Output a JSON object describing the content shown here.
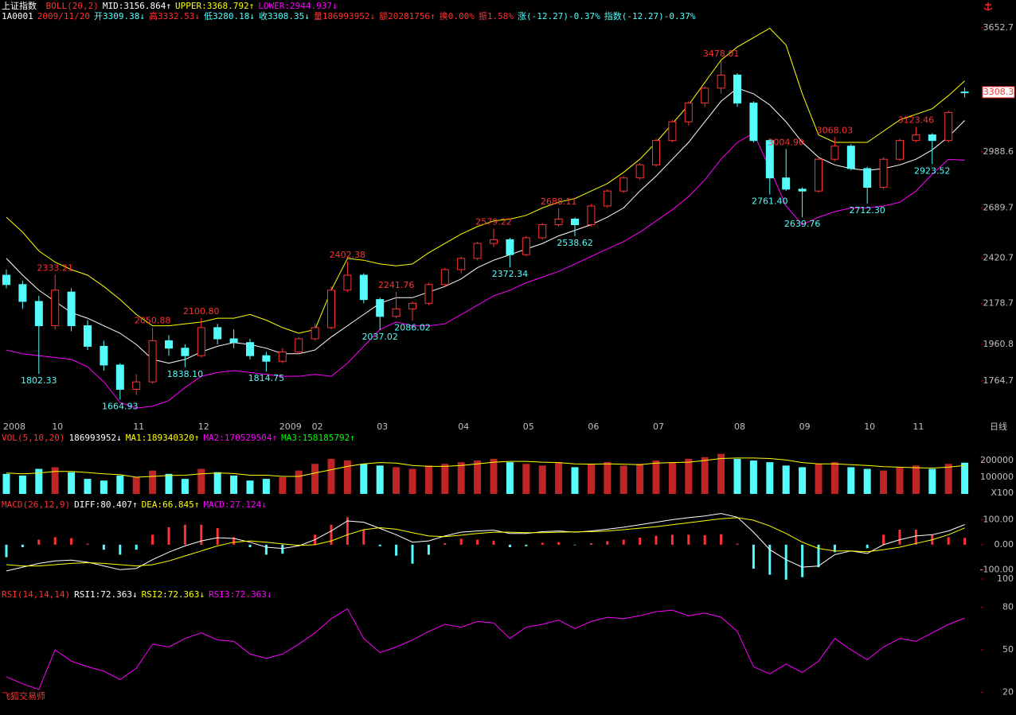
{
  "header": {
    "name": "上证指数",
    "quote": [
      {
        "text": "1A0001",
        "color": "#ffffff"
      },
      {
        "text": "2009/11/20",
        "color": "#ff3232"
      },
      {
        "text": "开3309.38↓",
        "color": "#54fcfc"
      },
      {
        "text": "高3332.53↓",
        "color": "#ff3232"
      },
      {
        "text": "低3280.18↓",
        "color": "#54fcfc"
      },
      {
        "text": "收3308.35↓",
        "color": "#54fcfc"
      },
      {
        "text": "量186993952↓",
        "color": "#ff3232"
      },
      {
        "text": "额20281756↑",
        "color": "#ff3232"
      },
      {
        "text": "换0.00%",
        "color": "#ff3232"
      },
      {
        "text": "振1.58%",
        "color": "#ff3232"
      },
      {
        "text": "涨(-12.27)-0.37%",
        "color": "#54fcfc"
      },
      {
        "text": "指数(-12.27)-0.37%",
        "color": "#54fcfc"
      }
    ]
  },
  "chart_data": [
    {
      "type": "candlestick",
      "legend": [
        {
          "text": "BOLL(20,2)",
          "color": "#ff3232"
        },
        {
          "text": "MID:3156.864↑",
          "color": "#ffffff"
        },
        {
          "text": "UPPER:3368.792↑",
          "color": "#ffff00"
        },
        {
          "text": "LOWER:2944.937↓",
          "color": "#ff00ff"
        }
      ],
      "categories": [
        "2008",
        null,
        null,
        "10",
        null,
        null,
        null,
        null,
        "11",
        null,
        null,
        null,
        "12",
        null,
        null,
        null,
        null,
        "2009",
        null,
        "02",
        null,
        null,
        null,
        "03",
        null,
        null,
        null,
        null,
        "04",
        null,
        null,
        null,
        "05",
        null,
        null,
        null,
        "06",
        null,
        null,
        null,
        "07",
        null,
        null,
        null,
        null,
        "08",
        null,
        null,
        null,
        "09",
        null,
        null,
        null,
        "10",
        null,
        null,
        "11",
        null,
        null,
        null
      ],
      "open": [
        2330,
        2280,
        2190,
        2060,
        2240,
        2060,
        1950,
        1850,
        1720,
        1760,
        1980,
        1940,
        1900,
        2050,
        1990,
        1970,
        1900,
        1870,
        1920,
        1990,
        2050,
        2250,
        2330,
        2200,
        2110,
        2150,
        2180,
        2280,
        2360,
        2420,
        2500,
        2520,
        2440,
        2530,
        2600,
        2630,
        2600,
        2700,
        2780,
        2850,
        2920,
        3050,
        3150,
        3250,
        3330,
        3400,
        3250,
        3050,
        2850,
        2790,
        2780,
        2950,
        3020,
        2900,
        2800,
        2950,
        3050,
        3080,
        3050,
        3309.38
      ],
      "high": [
        2360,
        2300,
        2220,
        2333.21,
        2260,
        2090,
        1980,
        1860,
        1800,
        2050.88,
        2010,
        1960,
        2100.8,
        2070,
        2040,
        1990,
        1920,
        1940,
        2000,
        2070,
        2270,
        2402.38,
        2340,
        2210,
        2241.76,
        2190,
        2290,
        2370,
        2430,
        2510,
        2579.22,
        2530,
        2540,
        2610,
        2688.11,
        2640,
        2710,
        2790,
        2860,
        2930,
        3060,
        3160,
        3260,
        3340,
        3478.01,
        3410,
        3260,
        3060,
        3004.9,
        2800,
        2960,
        3068.03,
        3030,
        2910,
        2960,
        3060,
        3123.46,
        3090,
        3210,
        3332.53
      ],
      "low": [
        2260,
        2150,
        1802.33,
        2040,
        2030,
        1930,
        1820,
        1664.93,
        1690,
        1750,
        1900,
        1838.1,
        1890,
        1960,
        1940,
        1880,
        1814.75,
        1860,
        1910,
        1980,
        2040,
        2240,
        2180,
        2037.02,
        2100,
        2086.02,
        2170,
        2270,
        2340,
        2410,
        2480,
        2372.34,
        2430,
        2520,
        2590,
        2538.62,
        2590,
        2690,
        2770,
        2840,
        2910,
        3040,
        3130,
        3230,
        3300,
        3230,
        3040,
        2761.4,
        2780,
        2639.76,
        2770,
        2940,
        2890,
        2712.3,
        2790,
        2940,
        3040,
        2923.52,
        3040,
        3280.18
      ],
      "close": [
        2280,
        2190,
        2060,
        2250,
        2060,
        1950,
        1850,
        1720,
        1760,
        1980,
        1940,
        1900,
        2050,
        1990,
        1970,
        1900,
        1870,
        1920,
        1990,
        2050,
        2250,
        2330,
        2200,
        2110,
        2150,
        2180,
        2280,
        2360,
        2420,
        2500,
        2520,
        2440,
        2530,
        2600,
        2630,
        2600,
        2700,
        2780,
        2850,
        2920,
        3050,
        3150,
        3250,
        3330,
        3400,
        3250,
        3050,
        2850,
        2790,
        2780,
        2950,
        3020,
        2900,
        2800,
        2950,
        3050,
        3080,
        3050,
        3200,
        3308.35
      ],
      "up_color": "#ff3232",
      "down_color": "#54fcfc",
      "overlays": [
        {
          "color": "#ffff00",
          "values": [
            2640,
            2560,
            2460,
            2400,
            2360,
            2330,
            2270,
            2200,
            2120,
            2060,
            2060,
            2070,
            2080,
            2100,
            2100,
            2120,
            2090,
            2050,
            2020,
            2040,
            2250,
            2420,
            2410,
            2390,
            2380,
            2390,
            2450,
            2500,
            2550,
            2590,
            2620,
            2630,
            2650,
            2690,
            2720,
            2740,
            2780,
            2820,
            2880,
            2950,
            3040,
            3140,
            3240,
            3360,
            3480,
            3550,
            3600,
            3650,
            3560,
            3300,
            3080,
            3040,
            3040,
            3040,
            3100,
            3160,
            3190,
            3220,
            3290,
            3368.792
          ]
        },
        {
          "color": "#ffffff",
          "values": [
            2420,
            2330,
            2250,
            2190,
            2130,
            2100,
            2060,
            2020,
            1960,
            1880,
            1860,
            1880,
            1920,
            1950,
            1970,
            1960,
            1940,
            1910,
            1910,
            1930,
            2000,
            2060,
            2120,
            2180,
            2210,
            2210,
            2240,
            2270,
            2310,
            2370,
            2410,
            2440,
            2470,
            2500,
            2540,
            2570,
            2600,
            2640,
            2690,
            2780,
            2860,
            2950,
            3040,
            3150,
            3260,
            3330,
            3300,
            3240,
            3150,
            3040,
            2960,
            2920,
            2900,
            2890,
            2900,
            2920,
            2950,
            3000,
            3070,
            3156.864
          ]
        },
        {
          "color": "#ff00ff",
          "values": [
            1930,
            1910,
            1900,
            1890,
            1880,
            1840,
            1760,
            1650,
            1620,
            1630,
            1660,
            1730,
            1790,
            1810,
            1820,
            1810,
            1800,
            1790,
            1790,
            1800,
            1790,
            1860,
            1950,
            2040,
            2080,
            2060,
            2060,
            2070,
            2120,
            2170,
            2220,
            2250,
            2290,
            2320,
            2350,
            2390,
            2430,
            2470,
            2510,
            2560,
            2620,
            2680,
            2750,
            2840,
            2950,
            3040,
            3090,
            2900,
            2700,
            2600,
            2640,
            2670,
            2690,
            2690,
            2700,
            2720,
            2780,
            2870,
            2950,
            2944.937
          ]
        }
      ],
      "annotations": [
        {
          "value": 2333.21,
          "label": "2333.21"
        },
        {
          "value": 1802.33,
          "label": "1802.33"
        },
        {
          "value": 1664.93,
          "label": "1664.93"
        },
        {
          "value": 2050.88,
          "label": "2050.88"
        },
        {
          "value": 2100.8,
          "label": "2100.80"
        },
        {
          "value": 1838.1,
          "label": "1838.10"
        },
        {
          "value": 1814.75,
          "label": "1814.75"
        },
        {
          "value": 2402.38,
          "label": "2402.38"
        },
        {
          "value": 2241.76,
          "label": "2241.76"
        },
        {
          "value": 2037.02,
          "label": "2037.02"
        },
        {
          "value": 2086.02,
          "label": "2086.02"
        },
        {
          "value": 2579.22,
          "label": "2579.22"
        },
        {
          "value": 2372.34,
          "label": "2372.34"
        },
        {
          "value": 2688.11,
          "label": "2688.11"
        },
        {
          "value": 2538.62,
          "label": "2538.62"
        },
        {
          "value": 3478.01,
          "label": "3478.01"
        },
        {
          "value": 3004.9,
          "label": "3004.90"
        },
        {
          "value": 2761.4,
          "label": "2761.40"
        },
        {
          "value": 2639.76,
          "label": "2639.76"
        },
        {
          "value": 3068.03,
          "label": "3068.03"
        },
        {
          "value": 2712.3,
          "label": "2712.30"
        },
        {
          "value": 3123.46,
          "label": "3123.46"
        },
        {
          "value": 2923.52,
          "label": "2923.52"
        }
      ],
      "last_price": 3308.3,
      "period_label": "日线",
      "ylim": [
        1582,
        3682
      ],
      "yticks": [
        3652.7,
        2988.6,
        2689.7,
        2420.7,
        2178.7,
        1960.8,
        1764.7
      ]
    },
    {
      "type": "bar",
      "legend": [
        {
          "text": "VOL(5,10,20)",
          "color": "#ff3232"
        },
        {
          "text": "186993952↓",
          "color": "#ffffff"
        },
        {
          "text": "MA1:189340320↑",
          "color": "#ffff00"
        },
        {
          "text": "MA2:170529504↑",
          "color": "#ff00ff"
        },
        {
          "text": "MA3:158185792↑",
          "color": "#00ff00"
        }
      ],
      "values": [
        120000,
        110000,
        150000,
        160000,
        130000,
        90000,
        80000,
        110000,
        100000,
        140000,
        120000,
        90000,
        150000,
        130000,
        110000,
        80000,
        90000,
        100000,
        140000,
        180000,
        210000,
        200000,
        180000,
        170000,
        160000,
        150000,
        170000,
        180000,
        190000,
        200000,
        210000,
        190000,
        180000,
        170000,
        190000,
        160000,
        180000,
        190000,
        170000,
        180000,
        200000,
        190000,
        210000,
        220000,
        240000,
        210000,
        200000,
        190000,
        170000,
        160000,
        180000,
        190000,
        160000,
        150000,
        140000,
        160000,
        170000,
        150000,
        180000,
        187000
      ],
      "ma": {
        "color": "#ffff00",
        "values": [
          125000,
          120000,
          125000,
          135000,
          135000,
          128000,
          120000,
          115000,
          100000,
          105000,
          110000,
          112000,
          120000,
          126000,
          122000,
          112000,
          112000,
          105000,
          105000,
          125000,
          145000,
          165000,
          180000,
          188000,
          185000,
          170000,
          165000,
          165000,
          170000,
          180000,
          190000,
          195000,
          195000,
          190000,
          188000,
          180000,
          178000,
          180000,
          178000,
          175000,
          185000,
          188000,
          190000,
          200000,
          212000,
          215000,
          215000,
          212000,
          203000,
          188000,
          180000,
          180000,
          175000,
          170000,
          163000,
          160000,
          157000,
          155000,
          160000,
          170000
        ]
      },
      "unit_label": "X100",
      "ylim": [
        0,
        305000
      ],
      "yticks": [
        200000,
        100000
      ]
    },
    {
      "type": "macd",
      "legend": [
        {
          "text": "MACD(26,12,9)",
          "color": "#ff3232"
        },
        {
          "text": "DIFF:80.407↑",
          "color": "#ffffff"
        },
        {
          "text": "DEA:66.845↑",
          "color": "#ffff00"
        },
        {
          "text": "MACD:27.124↓",
          "color": "#ff00ff"
        }
      ],
      "series": [
        {
          "color": "#ffffff",
          "values": [
            -105,
            -90,
            -75,
            -65,
            -62,
            -70,
            -85,
            -100,
            -95,
            -60,
            -30,
            -5,
            15,
            28,
            25,
            10,
            -10,
            -15,
            -5,
            20,
            55,
            95,
            90,
            65,
            40,
            10,
            15,
            35,
            50,
            55,
            58,
            45,
            45,
            52,
            55,
            50,
            55,
            62,
            70,
            80,
            90,
            100,
            108,
            115,
            125,
            110,
            50,
            -20,
            -60,
            -90,
            -85,
            -40,
            -25,
            -35,
            0,
            20,
            35,
            40,
            55,
            80.407
          ]
        },
        {
          "color": "#ffff00",
          "values": [
            -80,
            -85,
            -85,
            -80,
            -75,
            -72,
            -75,
            -80,
            -85,
            -80,
            -65,
            -45,
            -25,
            -5,
            10,
            15,
            10,
            3,
            -3,
            0,
            15,
            40,
            60,
            68,
            62,
            48,
            35,
            32,
            38,
            45,
            50,
            50,
            48,
            48,
            50,
            51,
            52,
            55,
            60,
            66,
            72,
            80,
            88,
            96,
            104,
            108,
            98,
            75,
            45,
            10,
            -15,
            -25,
            -25,
            -28,
            -20,
            -10,
            5,
            20,
            40,
            66.845
          ]
        }
      ],
      "histogram": [
        -50,
        -10,
        20,
        30,
        26,
        4,
        -20,
        -40,
        -20,
        40,
        70,
        80,
        80,
        66,
        30,
        -10,
        -40,
        -36,
        -4,
        40,
        80,
        110,
        60,
        -6,
        -44,
        -76,
        -40,
        6,
        24,
        20,
        16,
        -10,
        -6,
        8,
        10,
        -2,
        6,
        14,
        20,
        28,
        36,
        40,
        40,
        38,
        42,
        4,
        -96,
        -120,
        -140,
        -130,
        -90,
        -30,
        0,
        -14,
        40,
        60,
        60,
        40,
        30,
        27.124
      ],
      "up_color": "#ff3232",
      "down_color": "#54fcfc",
      "ylim": [
        -150,
        165
      ],
      "yticks": [
        {
          "value": 100,
          "label": "100.00"
        },
        {
          "value": 0,
          "label": "0.00"
        },
        {
          "value": -100,
          "label": "-100.00"
        }
      ]
    },
    {
      "type": "line",
      "legend": [
        {
          "text": "RSI(14,14,14)",
          "color": "#ff3232"
        },
        {
          "text": "RSI1:72.363↓",
          "color": "#ffffff"
        },
        {
          "text": "RSI2:72.363↓",
          "color": "#ffff00"
        },
        {
          "text": "RSI3:72.363↓",
          "color": "#ff00ff"
        }
      ],
      "series": [
        {
          "color": "#ff00ff",
          "values": [
            31,
            26,
            22,
            50,
            42,
            38,
            35,
            29,
            37,
            54,
            52,
            58,
            62,
            57,
            56,
            47,
            44,
            47,
            54,
            62,
            72,
            79,
            58,
            48,
            52,
            57,
            63,
            68,
            66,
            70,
            69,
            58,
            66,
            68,
            71,
            65,
            70,
            73,
            72,
            74,
            77,
            78,
            74,
            76,
            73,
            63,
            38,
            33,
            40,
            34,
            42,
            58,
            50,
            43,
            52,
            58,
            56,
            62,
            68,
            72.363
          ]
        }
      ],
      "ylim": [
        4,
        100
      ],
      "yticks": [
        100,
        80,
        50,
        20
      ]
    }
  ],
  "footer": "飞狐交易师"
}
